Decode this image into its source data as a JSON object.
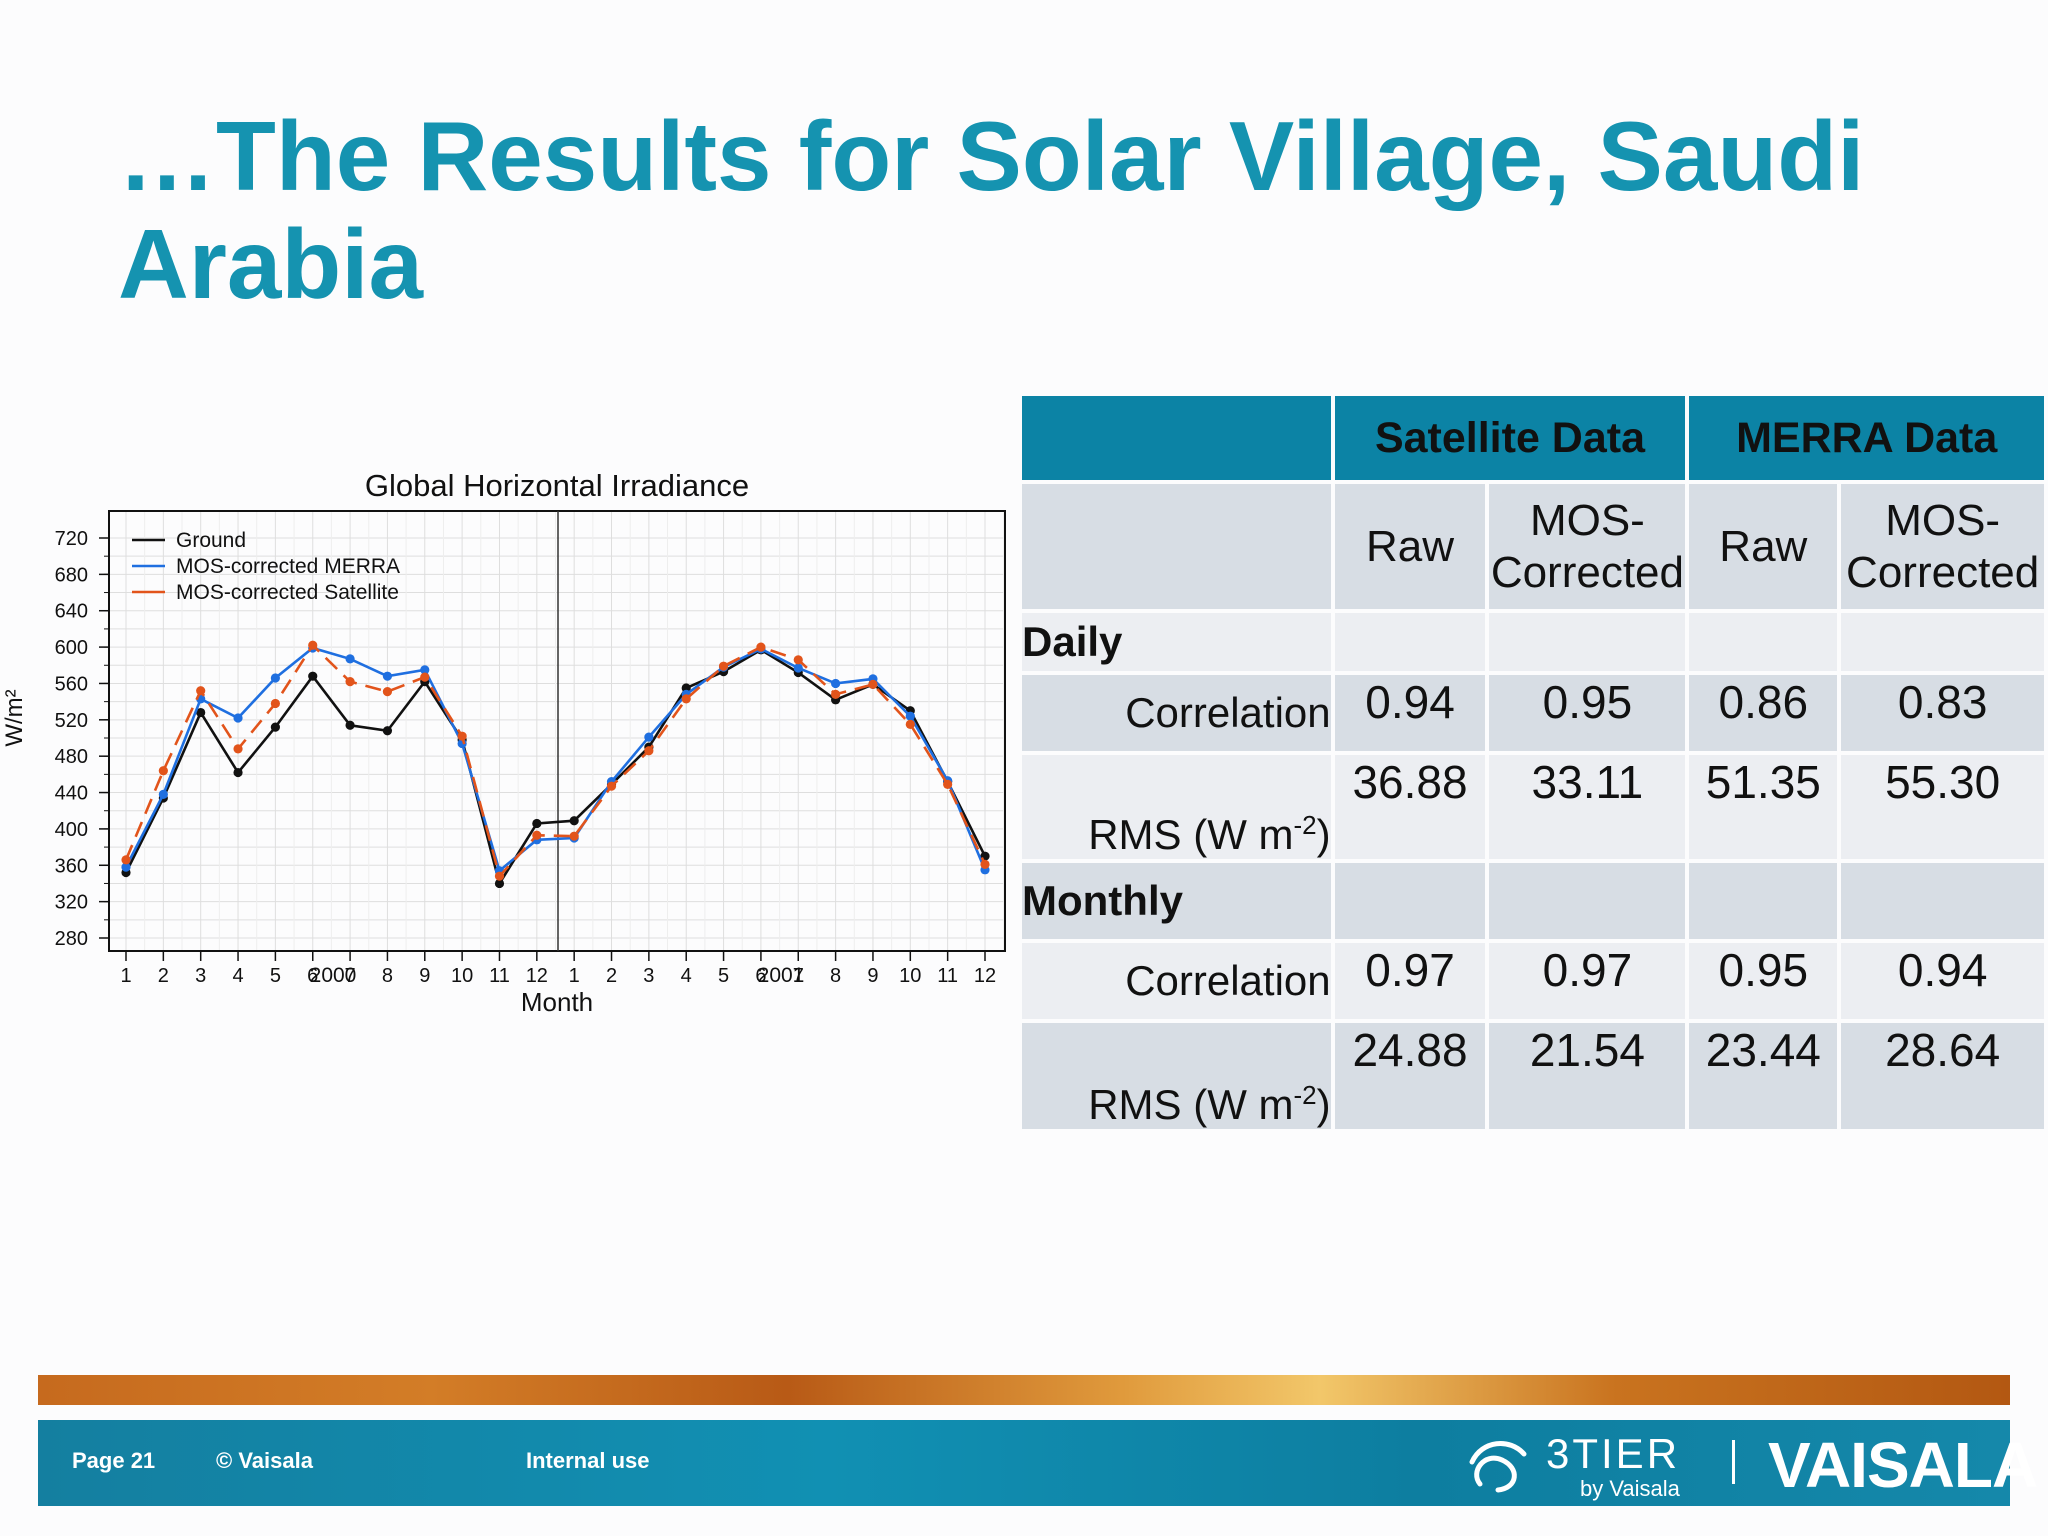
{
  "slide": {
    "title": "…The Results for Solar Village, Saudi Arabia"
  },
  "chart_data": {
    "type": "line",
    "title": "Global Horizontal Irradiance",
    "xlabel": "Month",
    "ylabel": "W/m²",
    "ylim": [
      280,
      720
    ],
    "yticks": [
      280,
      320,
      360,
      400,
      440,
      480,
      520,
      560,
      600,
      640,
      680,
      720
    ],
    "years": [
      "2000",
      "2001"
    ],
    "categories": [
      "1",
      "2",
      "3",
      "4",
      "5",
      "6",
      "7",
      "8",
      "9",
      "10",
      "11",
      "12",
      "1",
      "2",
      "3",
      "4",
      "5",
      "6",
      "7",
      "8",
      "9",
      "10",
      "11",
      "12"
    ],
    "grid": true,
    "legend_position": "top-left",
    "series": [
      {
        "name": "Ground",
        "color": "#111111",
        "dashed": false,
        "values": [
          352,
          434,
          528,
          462,
          512,
          568,
          514,
          508,
          562,
          498,
          340,
          406,
          409,
          449,
          490,
          555,
          573,
          597,
          572,
          542,
          559,
          530,
          452,
          370
        ]
      },
      {
        "name": "MOS-corrected MERRA",
        "color": "#1f6fe0",
        "dashed": false,
        "values": [
          358,
          438,
          543,
          522,
          566,
          599,
          587,
          568,
          575,
          494,
          354,
          388,
          390,
          452,
          501,
          548,
          578,
          598,
          577,
          560,
          565,
          524,
          453,
          355
        ]
      },
      {
        "name": "MOS-corrected Satellite",
        "color": "#e2541b",
        "dashed": true,
        "values": [
          366,
          464,
          552,
          488,
          538,
          602,
          562,
          551,
          567,
          502,
          348,
          393,
          392,
          447,
          486,
          543,
          579,
          600,
          586,
          548,
          559,
          515,
          449,
          361
        ]
      }
    ]
  },
  "table": {
    "group_headers": [
      "Satellite Data",
      "MERRA Data"
    ],
    "sub_headers": [
      "Raw",
      "MOS-\nCorrected",
      "Raw",
      "MOS-\nCorrected"
    ],
    "sections": [
      {
        "label": "Daily",
        "rows": [
          {
            "label": "Correlation",
            "values": [
              "0.94",
              "0.95",
              "0.86",
              "0.83"
            ]
          },
          {
            "label_main": "RMS (W m",
            "label_sup": "-2",
            "label_end": ")",
            "values": [
              "36.88",
              "33.11",
              "51.35",
              "55.30"
            ]
          }
        ]
      },
      {
        "label": "Monthly",
        "rows": [
          {
            "label": "Correlation",
            "values": [
              "0.97",
              "0.97",
              "0.95",
              "0.94"
            ]
          },
          {
            "label_main": "RMS (W m",
            "label_sup": "-2",
            "label_end": ")",
            "values": [
              "24.88",
              "21.54",
              "23.44",
              "28.64"
            ]
          }
        ]
      }
    ]
  },
  "footer": {
    "page": "Page  21",
    "copyright": "© Vaisala",
    "classification": "Internal use",
    "logo_3tier": "3TIER",
    "logo_3tier_sub": "by Vaisala",
    "logo_vaisala": "VAISALA"
  },
  "colors": {
    "title": "#1593b0",
    "table_header": "#0c83a5",
    "footer_bar": "#1190b3"
  }
}
